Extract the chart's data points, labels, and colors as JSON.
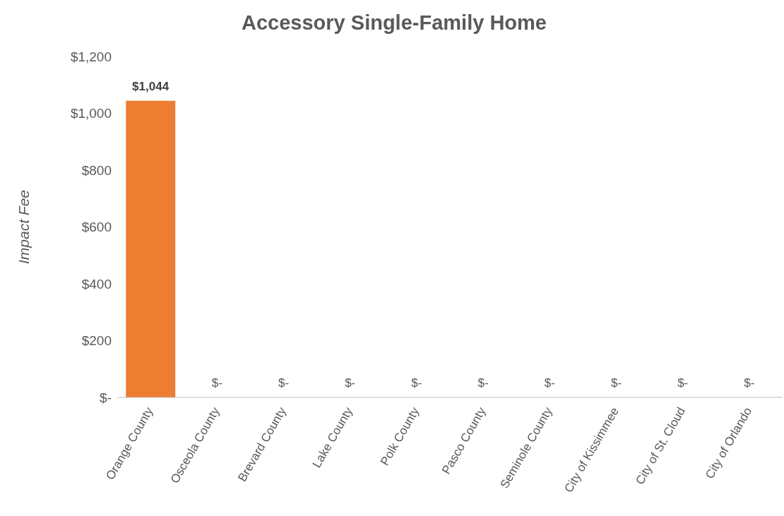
{
  "chart_data": {
    "type": "bar",
    "title": "Accessory Single-Family Home",
    "ylabel": "Impact Fee",
    "categories": [
      "Orange County",
      "Osceola County",
      "Brevard County",
      "Lake County",
      "Polk County",
      "Pasco County",
      "Seminole County",
      "City of Kissimmee",
      "City of St. Cloud",
      "City of Orlando"
    ],
    "values": [
      1044,
      0,
      0,
      0,
      0,
      0,
      0,
      0,
      0,
      0
    ],
    "value_labels": [
      "$1,044",
      "$-",
      "$-",
      "$-",
      "$-",
      "$-",
      "$-",
      "$-",
      "$-",
      "$-"
    ],
    "color": "#ed7d31",
    "ylim": [
      0,
      1200
    ],
    "yticks": [
      {
        "value": 0,
        "label": "$-"
      },
      {
        "value": 200,
        "label": "$200"
      },
      {
        "value": 400,
        "label": "$400"
      },
      {
        "value": 600,
        "label": "$600"
      },
      {
        "value": 800,
        "label": "$800"
      },
      {
        "value": 1000,
        "label": "$1,000"
      },
      {
        "value": 1200,
        "label": "$1,200"
      }
    ],
    "grid": false,
    "legend": false
  }
}
